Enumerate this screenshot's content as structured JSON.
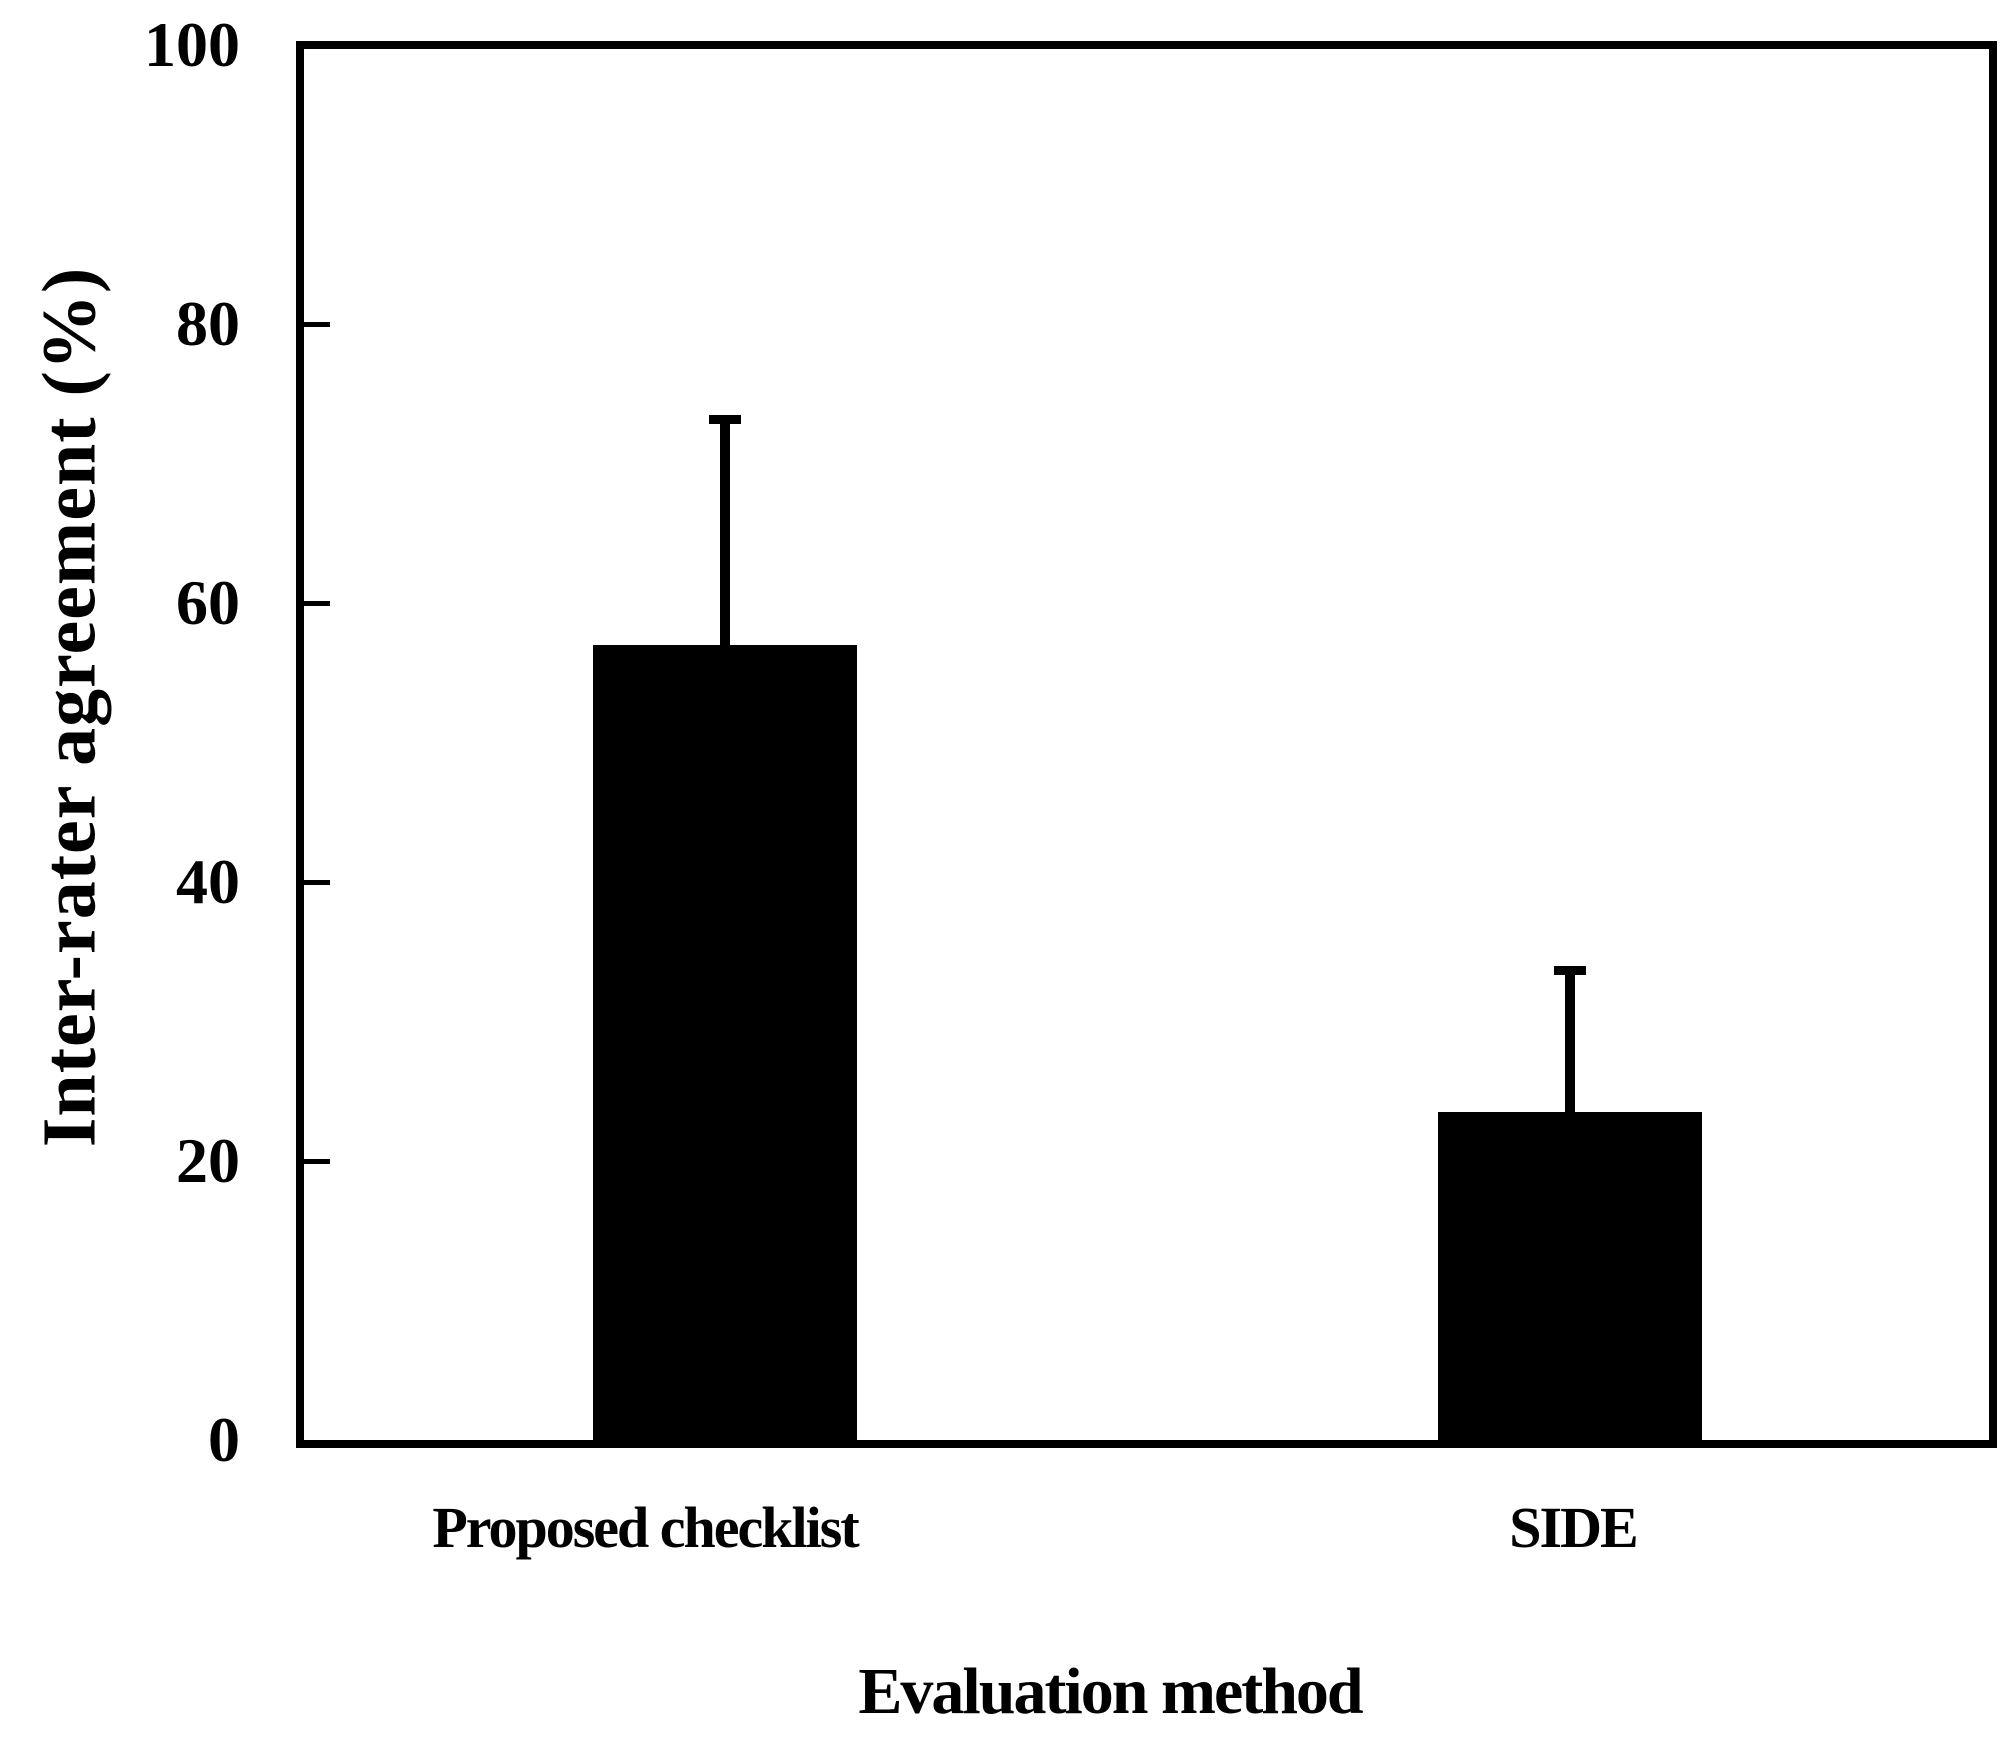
{
  "chart_data": {
    "type": "bar",
    "title": "",
    "xlabel": "Evaluation method",
    "ylabel": "Inter-rater agreement (%)",
    "categories": [
      "Proposed checklist",
      "SIDE"
    ],
    "values": [
      57,
      23.5
    ],
    "errors_upper": [
      16.5,
      10.5
    ],
    "error_bar_style": "upper-cap-only",
    "ylim": [
      0,
      100
    ],
    "yticks": [
      0,
      20,
      40,
      60,
      80,
      100
    ],
    "bar_color": "#000000",
    "axis_color": "#000000",
    "text_color": "#000000",
    "background_color": "#ffffff",
    "grid": false,
    "legend": null
  }
}
